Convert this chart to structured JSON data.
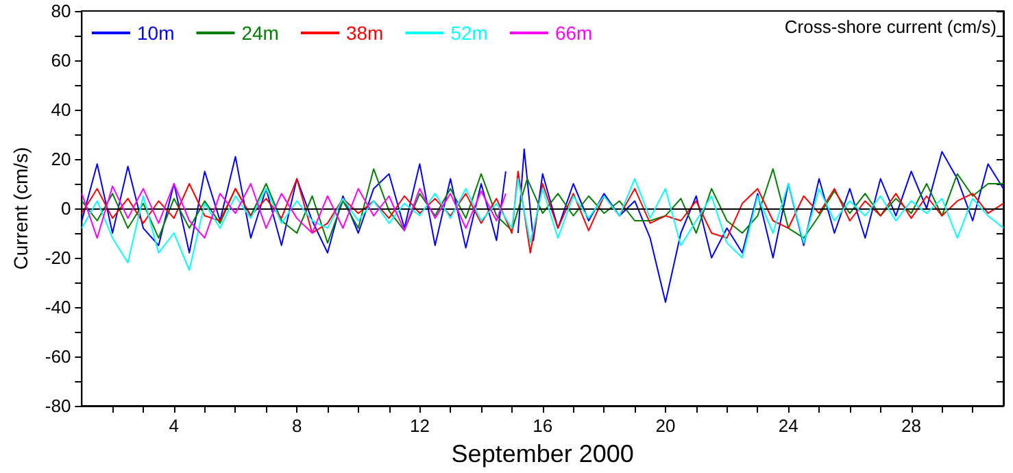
{
  "chart_data": {
    "type": "line",
    "xlabel": "September 2000",
    "ylabel": "Current (cm/s)",
    "annotations": [
      "Cross-shore current (cm/s)"
    ],
    "xlim": [
      1,
      31
    ],
    "ylim": [
      -80,
      80
    ],
    "xticks": [
      {
        "value": 2,
        "label": null
      },
      {
        "value": 3,
        "label": null
      },
      4,
      {
        "value": 5,
        "label": null
      },
      {
        "value": 6,
        "label": null
      },
      {
        "value": 7,
        "label": null
      },
      8,
      {
        "value": 9,
        "label": null
      },
      {
        "value": 10,
        "label": null
      },
      {
        "value": 11,
        "label": null
      },
      12,
      {
        "value": 13,
        "label": null
      },
      {
        "value": 14,
        "label": null
      },
      {
        "value": 15,
        "label": null
      },
      16,
      {
        "value": 17,
        "label": null
      },
      {
        "value": 18,
        "label": null
      },
      {
        "value": 19,
        "label": null
      },
      20,
      {
        "value": 21,
        "label": null
      },
      {
        "value": 22,
        "label": null
      },
      {
        "value": 23,
        "label": null
      },
      24,
      {
        "value": 25,
        "label": null
      },
      {
        "value": 26,
        "label": null
      },
      {
        "value": 27,
        "label": null
      },
      28,
      {
        "value": 29,
        "label": null
      },
      {
        "value": 30,
        "label": null
      }
    ],
    "yticks": [
      -80,
      {
        "value": -70,
        "label": null
      },
      -60,
      {
        "value": -50,
        "label": null
      },
      -40,
      {
        "value": -30,
        "label": null
      },
      -20,
      {
        "value": -10,
        "label": null
      },
      0,
      {
        "value": 10,
        "label": null
      },
      20,
      {
        "value": 30,
        "label": null
      },
      40,
      {
        "value": 50,
        "label": null
      },
      60,
      {
        "value": 70,
        "label": null
      },
      80
    ],
    "grid": false,
    "legend": "top left",
    "marker": "none",
    "line_style": "solid",
    "ref_lines": [
      {
        "axis": "y",
        "value": 0,
        "color": "#000000"
      }
    ],
    "series": [
      {
        "name": "10m",
        "color": "#0000ff",
        "x": [
          1,
          1.5,
          2,
          2.5,
          3,
          3.5,
          4,
          4.5,
          5,
          5.5,
          6,
          6.5,
          7,
          7.5,
          8,
          8.5,
          9,
          9.5,
          10,
          10.5,
          11,
          11.5,
          12,
          12.5,
          13,
          13.5,
          14,
          14.5,
          14.8,
          15,
          15.2,
          15.4,
          15.7,
          16,
          16.5,
          17,
          17.5,
          18,
          18.5,
          19,
          19.5,
          20,
          20.5,
          21,
          21.5,
          22,
          22.5,
          23,
          23.5,
          24,
          24.5,
          25,
          25.5,
          26,
          26.5,
          27,
          27.5,
          28,
          28.5,
          29,
          29.5,
          30,
          30.5,
          31
        ],
        "values": [
          -5,
          18,
          -10,
          17,
          -8,
          -15,
          10,
          -18,
          15,
          -5,
          21,
          -12,
          8,
          -15,
          12,
          -5,
          -18,
          5,
          -10,
          8,
          14,
          -8,
          18,
          -15,
          12,
          -16,
          10,
          -13,
          15,
          null,
          -10,
          24,
          -13,
          14,
          -8,
          10,
          -5,
          6,
          -3,
          3,
          -12,
          -38,
          -10,
          5,
          -20,
          -8,
          -18,
          6,
          -20,
          10,
          -15,
          12,
          -10,
          8,
          -12,
          12,
          -3,
          15,
          0,
          23,
          12,
          -5,
          18,
          8
        ]
      },
      {
        "name": "24m",
        "color": "#008000",
        "x": [
          1,
          1.5,
          2,
          2.5,
          3,
          3.5,
          4,
          4.5,
          5,
          5.5,
          6,
          6.5,
          7,
          7.5,
          8,
          8.5,
          9,
          9.5,
          10,
          10.5,
          11,
          11.5,
          12,
          12.5,
          13,
          13.5,
          14,
          14.5,
          15,
          15.5,
          16,
          16.5,
          17,
          17.5,
          18,
          18.5,
          19,
          19.5,
          20,
          20.5,
          21,
          21.5,
          22,
          22.5,
          23,
          23.5,
          24,
          24.5,
          25,
          25.5,
          26,
          26.5,
          27,
          27.5,
          28,
          28.5,
          29,
          29.5,
          30,
          30.5,
          31
        ],
        "values": [
          3,
          -5,
          6,
          -8,
          2,
          -12,
          4,
          -8,
          3,
          -6,
          8,
          -3,
          10,
          -5,
          -10,
          5,
          -14,
          3,
          -8,
          16,
          -1,
          -9,
          6,
          -3,
          8,
          -4,
          14,
          -3,
          -9,
          12,
          -2,
          6,
          -3,
          5,
          -2,
          3,
          -5,
          -5,
          -3,
          4,
          -10,
          8,
          -5,
          -10,
          -3,
          16,
          -8,
          -12,
          -3,
          7,
          -2,
          6,
          -3,
          4,
          -2,
          10,
          -3,
          14,
          5,
          10,
          10
        ]
      },
      {
        "name": "38m",
        "color": "#ff0000",
        "x": [
          1,
          1.5,
          2,
          2.5,
          3,
          3.5,
          4,
          4.5,
          5,
          5.5,
          6,
          6.5,
          7,
          7.5,
          8,
          8.5,
          9,
          9.5,
          10,
          10.5,
          11,
          11.5,
          12,
          12.5,
          13,
          13.5,
          14,
          14.5,
          15,
          15.2,
          15.6,
          16,
          16.5,
          17,
          17.5,
          18,
          18.5,
          19,
          19.5,
          20,
          20.5,
          21,
          21.5,
          22,
          22.5,
          23,
          23.5,
          24,
          24.5,
          25,
          25.5,
          26,
          26.5,
          27,
          27.5,
          28,
          28.5,
          29,
          29.5,
          30,
          30.5,
          31
        ],
        "values": [
          -2,
          8,
          -4,
          4,
          -6,
          3,
          -4,
          10,
          -3,
          -5,
          8,
          -3,
          4,
          -4,
          12,
          -10,
          -6,
          4,
          -2,
          3,
          -4,
          5,
          -2,
          4,
          -3,
          6,
          -6,
          4,
          -10,
          15,
          -18,
          10,
          -8,
          6,
          -9,
          5,
          -3,
          8,
          -6,
          -3,
          -5,
          3,
          -10,
          -12,
          2,
          8,
          -5,
          -8,
          5,
          -2,
          8,
          -5,
          3,
          -3,
          6,
          -4,
          5,
          -3,
          3,
          6,
          -2,
          2
        ]
      },
      {
        "name": "52m",
        "color": "#00ffff",
        "x": [
          1,
          1.5,
          2,
          2.5,
          3,
          3.5,
          4,
          4.5,
          5,
          5.5,
          6,
          6.5,
          7,
          7.5,
          8,
          8.5,
          9,
          9.5,
          10,
          10.5,
          11,
          11.5,
          12,
          12.5,
          13,
          13.5,
          14,
          14.5,
          15,
          15.2,
          15.6,
          16,
          16.5,
          17,
          17.5,
          18,
          18.5,
          19,
          19.5,
          20,
          20.5,
          21,
          21.5,
          22,
          22.5,
          23,
          23.5,
          24,
          24.5,
          25,
          25.5,
          26,
          26.5,
          27,
          27.5,
          28,
          28.5,
          29,
          29.5,
          30,
          30.5,
          31
        ],
        "values": [
          -8,
          3,
          -12,
          -22,
          5,
          -18,
          -10,
          -25,
          2,
          -8,
          5,
          -4,
          8,
          -6,
          3,
          -5,
          -8,
          4,
          -5,
          3,
          -6,
          2,
          -3,
          6,
          -4,
          8,
          -5,
          2,
          -8,
          12,
          -14,
          8,
          -12,
          5,
          -4,
          5,
          -3,
          12,
          -4,
          8,
          -15,
          -5,
          5,
          -14,
          -20,
          5,
          -10,
          10,
          -14,
          8,
          -5,
          3,
          -3,
          5,
          -5,
          3,
          -2,
          4,
          -12,
          4,
          -3,
          -8
        ]
      },
      {
        "name": "66m",
        "color": "#ff00ff",
        "x": [
          1,
          1.5,
          2,
          2.5,
          3,
          3.5,
          4,
          4.5,
          5,
          5.5,
          6,
          6.5,
          7,
          7.5,
          8,
          8.5,
          9,
          9.5,
          10,
          10.5,
          11,
          11.5,
          12,
          12.5,
          13,
          13.5,
          14,
          14.5,
          14.8
        ],
        "values": [
          6,
          -12,
          9,
          -4,
          8,
          -6,
          10,
          -5,
          -12,
          6,
          -2,
          10,
          -8,
          6,
          -4,
          -10,
          5,
          -8,
          8,
          -3,
          5,
          -9,
          8,
          -4,
          6,
          -8,
          7,
          -5,
          6
        ]
      }
    ]
  }
}
